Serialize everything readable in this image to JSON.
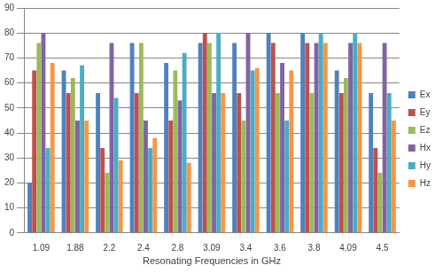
{
  "chart_data": {
    "type": "bar",
    "x_label": "Resonating Frequencies in GHz",
    "categories": [
      "1.09",
      "1.88",
      "2.2",
      "2.4",
      "2.8",
      "3.09",
      "3.4",
      "3.6",
      "3.8",
      "4.09",
      "4.5"
    ],
    "series": [
      {
        "name": "Ex",
        "color": "#4f81bd",
        "values": [
          20,
          65,
          56,
          76,
          68,
          76,
          76,
          80,
          80,
          65,
          56
        ]
      },
      {
        "name": "Ey",
        "color": "#c0504d",
        "values": [
          65,
          56,
          34,
          56,
          45,
          80,
          56,
          76,
          76,
          56,
          34
        ]
      },
      {
        "name": "Ez",
        "color": "#9bbb59",
        "values": [
          76,
          62,
          24,
          76,
          65,
          76,
          45,
          56,
          56,
          62,
          24
        ]
      },
      {
        "name": "Hx",
        "color": "#8064a2",
        "values": [
          80,
          45,
          76,
          45,
          53,
          56,
          80,
          68,
          76,
          76,
          76
        ]
      },
      {
        "name": "Hy",
        "color": "#4bacc6",
        "values": [
          34,
          67,
          54,
          34,
          72,
          80,
          65,
          45,
          80,
          80,
          56
        ]
      },
      {
        "name": "Hz",
        "color": "#f79646",
        "values": [
          68,
          45,
          29,
          38,
          28,
          56,
          66,
          65,
          76,
          76,
          45
        ]
      }
    ],
    "ylim": [
      0,
      90
    ],
    "yticks": [
      0,
      10,
      20,
      30,
      40,
      50,
      60,
      70,
      80,
      90
    ],
    "grid": true,
    "legend": "right"
  }
}
